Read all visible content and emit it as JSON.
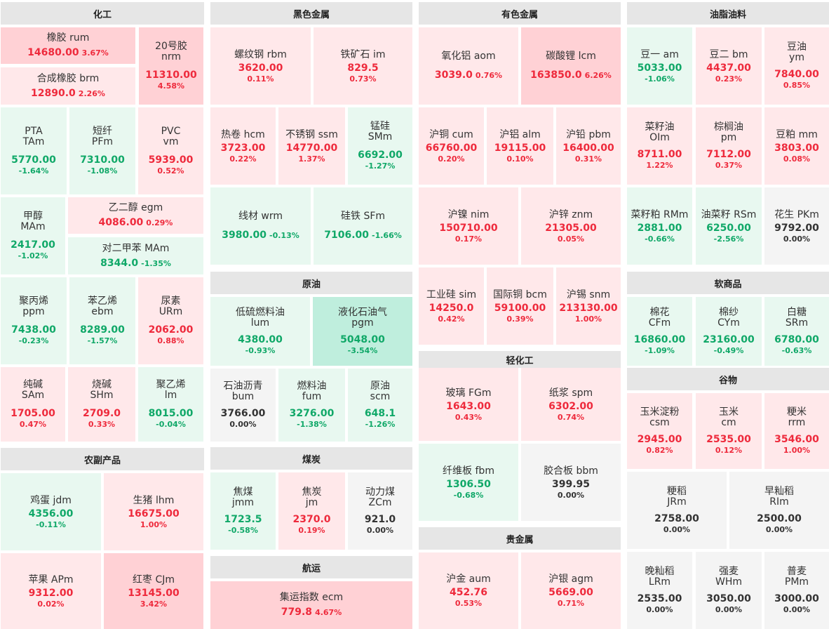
{
  "sections": [
    {
      "id": "chem",
      "title": "化工",
      "cells": [
        {
          "name": "橡胶",
          "code": "rum",
          "price": "14680.00",
          "pct": "3.67%",
          "tone": "up2",
          "inline": true
        },
        {
          "name": "20号胶",
          "code": "nrm",
          "price": "11310.00",
          "pct": "4.58%",
          "tone": "up2"
        },
        {
          "name": "合成橡胶",
          "code": "brm",
          "price": "12890.0",
          "pct": "2.26%",
          "tone": "up1",
          "inline": true
        },
        {
          "name": "PTA",
          "code": "TAm",
          "price": "5770.00",
          "pct": "-1.64%",
          "tone": "dn1"
        },
        {
          "name": "短纤",
          "code": "PFm",
          "price": "7310.00",
          "pct": "-1.08%",
          "tone": "dn1"
        },
        {
          "name": "PVC",
          "code": "vm",
          "price": "5939.00",
          "pct": "0.52%",
          "tone": "up1"
        },
        {
          "name": "甲醇",
          "code": "MAm",
          "price": "2417.00",
          "pct": "-1.02%",
          "tone": "dn1"
        },
        {
          "name": "乙二醇",
          "code": "egm",
          "price": "4086.00",
          "pct": "0.29%",
          "tone": "up1",
          "inline": true
        },
        {
          "name": "对二甲苯",
          "code": "MAm",
          "price": "8344.0",
          "pct": "-1.35%",
          "tone": "dn1",
          "inline": true
        },
        {
          "name": "聚丙烯",
          "code": "ppm",
          "price": "7438.00",
          "pct": "-0.23%",
          "tone": "dn1"
        },
        {
          "name": "苯乙烯",
          "code": "ebm",
          "price": "8289.00",
          "pct": "-1.57%",
          "tone": "dn1"
        },
        {
          "name": "尿素",
          "code": "URm",
          "price": "2062.00",
          "pct": "0.88%",
          "tone": "up1"
        },
        {
          "name": "纯碱",
          "code": "SAm",
          "price": "1705.00",
          "pct": "0.47%",
          "tone": "up1"
        },
        {
          "name": "烧碱",
          "code": "SHm",
          "price": "2709.0",
          "pct": "0.33%",
          "tone": "up1"
        },
        {
          "name": "聚乙烯",
          "code": "lm",
          "price": "8015.00",
          "pct": "-0.04%",
          "tone": "dn1"
        }
      ]
    },
    {
      "id": "agri",
      "title": "农副产品",
      "cells": [
        {
          "name": "鸡蛋",
          "code": "jdm",
          "price": "4356.00",
          "pct": "-0.11%",
          "tone": "dn1",
          "inline": true
        },
        {
          "name": "生猪",
          "code": "lhm",
          "price": "16675.00",
          "pct": "1.00%",
          "tone": "up1",
          "inline": true
        },
        {
          "name": "苹果",
          "code": "APm",
          "price": "9312.00",
          "pct": "0.02%",
          "tone": "up1",
          "inline": true
        },
        {
          "name": "红枣",
          "code": "CJm",
          "price": "13145.00",
          "pct": "3.42%",
          "tone": "up2",
          "inline": true
        }
      ]
    },
    {
      "id": "ferrous",
      "title": "黑色金属",
      "cells": [
        {
          "name": "螺纹钢",
          "code": "rbm",
          "price": "3620.00",
          "pct": "0.11%",
          "tone": "up1",
          "inline": true
        },
        {
          "name": "铁矿石",
          "code": "im",
          "price": "829.5",
          "pct": "0.73%",
          "tone": "up1",
          "inline": true
        },
        {
          "name": "热卷",
          "code": "hcm",
          "price": "3723.00",
          "pct": "0.22%",
          "tone": "up1",
          "inline": true
        },
        {
          "name": "不锈钢",
          "code": "ssm",
          "price": "14770.00",
          "pct": "1.37%",
          "tone": "up1",
          "inline": true
        },
        {
          "name": "锰硅",
          "code": "SMm",
          "price": "6692.00",
          "pct": "-1.27%",
          "tone": "dn1"
        },
        {
          "name": "线材",
          "code": "wrm",
          "price": "3980.00",
          "pct": "-0.13%",
          "tone": "dn1",
          "inline": true,
          "oneline": true
        },
        {
          "name": "硅铁",
          "code": "SFm",
          "price": "7106.00",
          "pct": "-1.66%",
          "tone": "dn1",
          "inline": true,
          "oneline": true
        }
      ]
    },
    {
      "id": "crude",
      "title": "原油",
      "cells": [
        {
          "name": "低硫燃料油",
          "code": "lum",
          "price": "4380.00",
          "pct": "-0.93%",
          "tone": "dn1",
          "tight": true
        },
        {
          "name": "液化石油气",
          "code": "pgm",
          "price": "5048.00",
          "pct": "-3.54%",
          "tone": "dn2",
          "tight": true
        },
        {
          "name": "石油沥青",
          "code": "bum",
          "price": "3766.00",
          "pct": "0.00%",
          "tone": "flat",
          "tight": true
        },
        {
          "name": "燃料油",
          "code": "fum",
          "price": "3276.00",
          "pct": "-1.38%",
          "tone": "dn1",
          "tight": true
        },
        {
          "name": "原油",
          "code": "scm",
          "price": "648.1",
          "pct": "-1.26%",
          "tone": "dn1",
          "tight": true
        }
      ]
    },
    {
      "id": "coal",
      "title": "煤炭",
      "cells": [
        {
          "name": "焦煤",
          "code": "jmm",
          "price": "1723.5",
          "pct": "-0.58%",
          "tone": "dn1",
          "tight": true
        },
        {
          "name": "焦炭",
          "code": "jm",
          "price": "2370.0",
          "pct": "0.19%",
          "tone": "up1",
          "tight": true
        },
        {
          "name": "动力煤",
          "code": "ZCm",
          "price": "921.0",
          "pct": "0.00%",
          "tone": "flat",
          "tight": true
        }
      ]
    },
    {
      "id": "shipping",
      "title": "航运",
      "cells": [
        {
          "name": "集运指数",
          "code": "ecm",
          "price": "779.8",
          "pct": "4.67%",
          "tone": "up2",
          "inline": true
        }
      ]
    },
    {
      "id": "nonferrous",
      "title": "有色金属",
      "cells": [
        {
          "name": "氧化铝",
          "code": "aom",
          "price": "3039.0",
          "pct": "0.76%",
          "tone": "up1",
          "inline": true,
          "oneline": true
        },
        {
          "name": "碳酸锂",
          "code": "lcm",
          "price": "163850.0",
          "pct": "6.26%",
          "tone": "up2",
          "inline": true,
          "oneline": true
        },
        {
          "name": "沪铜",
          "code": "cum",
          "price": "66760.00",
          "pct": "0.20%",
          "tone": "up1",
          "inline": true
        },
        {
          "name": "沪铝",
          "code": "alm",
          "price": "19115.00",
          "pct": "0.10%",
          "tone": "up1",
          "inline": true
        },
        {
          "name": "沪铅",
          "code": "pbm",
          "price": "16400.00",
          "pct": "0.31%",
          "tone": "up1",
          "inline": true
        },
        {
          "name": "沪镍",
          "code": "nim",
          "price": "150710.00",
          "pct": "0.17%",
          "tone": "up1",
          "inline": true
        },
        {
          "name": "沪锌",
          "code": "znm",
          "price": "21305.00",
          "pct": "0.05%",
          "tone": "up1",
          "inline": true
        },
        {
          "name": "工业硅",
          "code": "sim",
          "price": "14250.0",
          "pct": "0.42%",
          "tone": "up1",
          "inline": true
        },
        {
          "name": "国际铜",
          "code": "bcm",
          "price": "59100.00",
          "pct": "0.39%",
          "tone": "up1",
          "inline": true
        },
        {
          "name": "沪锡",
          "code": "snm",
          "price": "213130.00",
          "pct": "1.00%",
          "tone": "up1",
          "inline": true
        }
      ]
    },
    {
      "id": "light",
      "title": "轻化工",
      "cells": [
        {
          "name": "玻璃",
          "code": "FGm",
          "price": "1643.00",
          "pct": "0.43%",
          "tone": "up1",
          "inline": true
        },
        {
          "name": "纸浆",
          "code": "spm",
          "price": "6302.00",
          "pct": "0.74%",
          "tone": "up1",
          "inline": true
        },
        {
          "name": "纤维板",
          "code": "fbm",
          "price": "1306.50",
          "pct": "-0.68%",
          "tone": "dn1",
          "inline": true
        },
        {
          "name": "胶合板",
          "code": "bbm",
          "price": "399.95",
          "pct": "0.00%",
          "tone": "flat",
          "inline": true
        }
      ]
    },
    {
      "id": "precious",
      "title": "贵金属",
      "cells": [
        {
          "name": "沪金",
          "code": "aum",
          "price": "452.76",
          "pct": "0.53%",
          "tone": "up1",
          "inline": true
        },
        {
          "name": "沪银",
          "code": "agm",
          "price": "5669.00",
          "pct": "0.71%",
          "tone": "up1",
          "inline": true
        }
      ]
    },
    {
      "id": "oils",
      "title": "油脂油料",
      "cells": [
        {
          "name": "豆一",
          "code": "am",
          "price": "5033.00",
          "pct": "-1.06%",
          "tone": "dn1",
          "inline": true
        },
        {
          "name": "豆二",
          "code": "bm",
          "price": "4437.00",
          "pct": "0.23%",
          "tone": "up1",
          "inline": true
        },
        {
          "name": "豆油",
          "code": "ym",
          "price": "7840.00",
          "pct": "0.85%",
          "tone": "up1",
          "tight": true
        },
        {
          "name": "菜籽油",
          "code": "OIm",
          "price": "8711.00",
          "pct": "1.22%",
          "tone": "up1",
          "tight": true
        },
        {
          "name": "棕榈油",
          "code": "pm",
          "price": "7112.00",
          "pct": "0.37%",
          "tone": "up1",
          "tight": true
        },
        {
          "name": "豆粕",
          "code": "mm",
          "price": "3803.00",
          "pct": "0.08%",
          "tone": "up1",
          "inline": true
        },
        {
          "name": "菜籽粕",
          "code": "RMm",
          "price": "2881.00",
          "pct": "-0.66%",
          "tone": "dn1",
          "inline": true
        },
        {
          "name": "油菜籽",
          "code": "RSm",
          "price": "6250.00",
          "pct": "-2.56%",
          "tone": "dn1",
          "inline": true
        },
        {
          "name": "花生",
          "code": "PKm",
          "price": "9792.00",
          "pct": "0.00%",
          "tone": "flat",
          "inline": true
        }
      ]
    },
    {
      "id": "soft",
      "title": "软商品",
      "cells": [
        {
          "name": "棉花",
          "code": "CFm",
          "price": "16860.00",
          "pct": "-1.09%",
          "tone": "dn1",
          "tight": true
        },
        {
          "name": "棉纱",
          "code": "CYm",
          "price": "23160.00",
          "pct": "-0.49%",
          "tone": "dn1",
          "tight": true
        },
        {
          "name": "白糖",
          "code": "SRm",
          "price": "6780.00",
          "pct": "-0.63%",
          "tone": "dn1",
          "tight": true
        }
      ]
    },
    {
      "id": "grain",
      "title": "谷物",
      "cells": [
        {
          "name": "玉米淀粉",
          "code": "csm",
          "price": "2945.00",
          "pct": "0.82%",
          "tone": "up1",
          "tight": true
        },
        {
          "name": "玉米",
          "code": "cm",
          "price": "2535.00",
          "pct": "0.12%",
          "tone": "up1",
          "tight": true
        },
        {
          "name": "粳米",
          "code": "rrm",
          "price": "3546.00",
          "pct": "1.00%",
          "tone": "up1",
          "tight": true
        },
        {
          "name": "粳稻",
          "code": "JRm",
          "price": "2758.00",
          "pct": "0.00%",
          "tone": "flat",
          "tight": true
        },
        {
          "name": "早籼稻",
          "code": "RIm",
          "price": "2500.00",
          "pct": "0.00%",
          "tone": "flat",
          "tight": true
        },
        {
          "name": "晚籼稻",
          "code": "LRm",
          "price": "2535.00",
          "pct": "0.00%",
          "tone": "flat",
          "tight": true
        },
        {
          "name": "强麦",
          "code": "WHm",
          "price": "3050.00",
          "pct": "0.00%",
          "tone": "flat",
          "tight": true
        },
        {
          "name": "普麦",
          "code": "PMm",
          "price": "3000.00",
          "pct": "0.00%",
          "tone": "flat",
          "tight": true
        }
      ]
    }
  ]
}
